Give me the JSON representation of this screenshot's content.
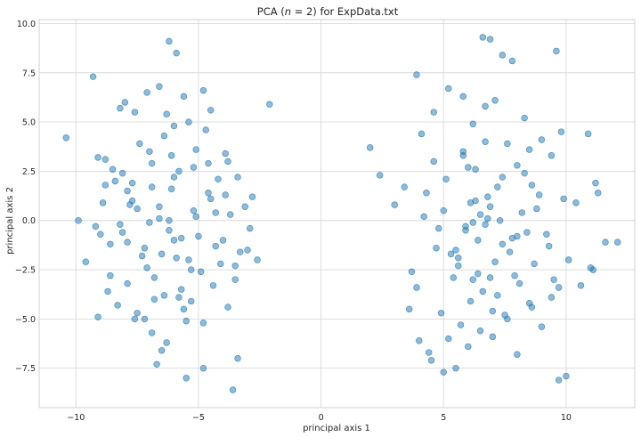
{
  "chart_data": {
    "type": "scatter",
    "title": "PCA (n = 2) for ExpData.txt",
    "title_prefix": "PCA (",
    "title_var": "n",
    "title_mid": " = 2) for ExpData.txt",
    "xlabel": "principal axis 1",
    "ylabel": "principal axis 2",
    "xlim": [
      -11.5,
      12.8
    ],
    "ylim": [
      -9.5,
      10.2
    ],
    "xticks": [
      -10,
      -5,
      0,
      5,
      10
    ],
    "yticks": [
      -7.5,
      -5.0,
      -2.5,
      0.0,
      2.5,
      5.0,
      7.5,
      10.0
    ],
    "xtick_labels": [
      "−10",
      "−5",
      "0",
      "5",
      "10"
    ],
    "ytick_labels": [
      "−7.5",
      "−5.0",
      "−2.5",
      "0.0",
      "2.5",
      "5.0",
      "7.5",
      "10.0"
    ],
    "grid": true,
    "marker_color": "#1f77b4",
    "marker_alpha": 0.5,
    "series": [
      {
        "x": [
          -10.4,
          -9.3,
          -9.6,
          -9.9,
          -9.2,
          -9.1,
          -8.8,
          -8.6,
          -8.2,
          -8.5,
          -8.0,
          -7.9,
          -7.6,
          -7.8,
          -7.2,
          -7.4,
          -7.1,
          -6.9,
          -6.6,
          -6.4,
          -6.2,
          -6.0,
          -5.9,
          -5.6,
          -5.4,
          -5.1,
          -4.8,
          -4.5,
          -4.2,
          -3.9,
          -3.6,
          -3.4,
          -2.1,
          -2.6,
          -3.0,
          -3.5,
          -4.3,
          -4.6,
          -5.0,
          -5.3,
          -5.8,
          -6.3,
          -6.7,
          -7.0,
          -7.5,
          -7.7,
          -8.1,
          -8.4,
          -8.7,
          -9.0,
          -8.9,
          -8.3,
          -7.3,
          -6.8,
          -6.1,
          -5.7,
          -5.2,
          -4.9,
          -4.4,
          -4.0,
          -3.7,
          -3.3,
          -3.1,
          -2.8,
          -2.9,
          -3.8,
          -4.7,
          -5.5,
          -6.5,
          -7.6,
          -8.1,
          -7.9,
          -6.9,
          -6.2,
          -5.4,
          -4.6,
          -3.9,
          -3.4,
          -3.5,
          -4.1,
          -4.8,
          -5.6,
          -6.4,
          -7.2,
          -7.9,
          -8.6,
          -9.1,
          -8.8,
          -7.7,
          -6.6,
          -5.9,
          -5.1,
          -4.3,
          -3.8,
          -4.5,
          -5.2,
          -6.0,
          -6.8,
          -7.5,
          -8.2,
          -7.1,
          -6.3,
          -5.5,
          -4.8,
          -6.2,
          -6.0,
          -5.8,
          -6.6,
          -7.0,
          -5.3,
          -6.1,
          -5.7,
          -6.9,
          -6.5
        ],
        "y": [
          4.2,
          7.3,
          -2.1,
          0.0,
          -0.3,
          3.2,
          1.8,
          -1.2,
          5.7,
          2.6,
          6.0,
          -3.2,
          5.5,
          0.8,
          -5.0,
          3.9,
          6.5,
          -5.7,
          6.8,
          4.3,
          9.1,
          2.2,
          8.5,
          6.3,
          5.0,
          0.2,
          6.6,
          5.6,
          2.1,
          1.3,
          -8.6,
          -7.0,
          5.9,
          -2.0,
          -1.5,
          -2.3,
          0.4,
          2.9,
          -0.8,
          -4.1,
          -3.9,
          -6.2,
          -7.3,
          3.5,
          -4.7,
          1.0,
          -0.6,
          2.0,
          -3.6,
          -0.7,
          0.9,
          -4.3,
          -1.8,
          -2.9,
          1.6,
          -0.9,
          0.5,
          -2.6,
          -3.3,
          -1.0,
          0.3,
          -1.6,
          0.7,
          1.2,
          -0.4,
          3.0,
          4.6,
          -5.1,
          -6.6,
          -5.0,
          2.4,
          -1.1,
          2.9,
          -0.5,
          -2.0,
          1.4,
          3.4,
          2.2,
          -3.0,
          -2.2,
          -5.2,
          -4.5,
          -3.8,
          -1.4,
          1.5,
          -2.8,
          -4.9,
          3.1,
          1.9,
          0.1,
          -1.9,
          3.6,
          -1.3,
          -4.4,
          1.1,
          2.7,
          4.8,
          -4.0,
          0.6,
          -0.2,
          -2.4,
          5.4,
          -8.0,
          -7.5,
          0.0,
          -1.0,
          2.5,
          0.7,
          -0.1,
          -2.5,
          3.3,
          -3.5,
          1.7,
          -1.7
        ]
      },
      {
        "x": [
          6.6,
          6.9,
          7.4,
          9.6,
          7.8,
          8.3,
          3.9,
          2.0,
          3.0,
          2.4,
          3.4,
          4.1,
          4.6,
          5.2,
          5.8,
          6.2,
          6.7,
          7.1,
          7.6,
          8.0,
          8.5,
          9.0,
          9.4,
          9.8,
          10.4,
          10.9,
          11.3,
          11.6,
          12.1,
          11.0,
          10.1,
          9.7,
          9.2,
          8.7,
          8.2,
          7.7,
          7.3,
          6.8,
          6.3,
          5.9,
          5.4,
          4.9,
          4.4,
          3.9,
          3.6,
          4.0,
          4.5,
          5.0,
          5.5,
          6.0,
          6.5,
          7.0,
          7.5,
          8.0,
          8.5,
          9.0,
          9.5,
          10.0,
          10.6,
          11.1,
          11.2,
          9.9,
          9.3,
          8.8,
          8.3,
          7.8,
          7.2,
          6.7,
          6.1,
          5.6,
          5.1,
          4.6,
          4.2,
          3.7,
          4.3,
          4.8,
          5.3,
          5.8,
          6.4,
          6.9,
          7.4,
          7.9,
          8.4,
          8.9,
          9.4,
          9.7,
          8.6,
          8.1,
          7.6,
          7.1,
          6.6,
          6.1,
          5.7,
          5.2,
          4.7,
          5.0,
          5.6,
          6.2,
          6.8,
          7.4,
          8.0,
          8.6,
          7.0,
          6.4,
          5.9,
          6.3,
          5.5,
          6.0,
          6.5,
          7.2,
          6.7,
          5.8,
          6.2,
          6.9
        ],
        "y": [
          9.3,
          9.2,
          8.4,
          8.6,
          8.1,
          5.2,
          7.4,
          3.7,
          0.8,
          2.3,
          1.7,
          4.4,
          5.5,
          6.7,
          6.3,
          4.9,
          5.8,
          6.1,
          3.9,
          2.8,
          3.6,
          4.1,
          3.3,
          4.5,
          0.9,
          4.4,
          1.4,
          -1.1,
          -1.1,
          -2.4,
          -2.0,
          -3.4,
          -0.7,
          -2.2,
          0.4,
          -1.6,
          0.0,
          1.2,
          2.6,
          -0.5,
          -2.9,
          -4.7,
          -6.7,
          -3.4,
          -4.5,
          -6.1,
          -7.1,
          -7.7,
          -7.5,
          -6.4,
          -5.6,
          -5.9,
          -4.8,
          -6.8,
          -4.2,
          -5.4,
          -3.0,
          -7.9,
          -3.3,
          -2.5,
          1.9,
          1.1,
          -1.3,
          0.6,
          2.4,
          -0.9,
          1.7,
          -0.2,
          0.9,
          -1.9,
          2.1,
          3.0,
          0.2,
          -2.6,
          1.4,
          -0.4,
          -1.7,
          3.3,
          -1.0,
          0.7,
          2.2,
          -2.8,
          -0.6,
          1.3,
          -3.9,
          -8.1,
          -4.4,
          -3.2,
          -5.0,
          -2.1,
          -3.6,
          -4.1,
          -5.3,
          -6.0,
          -1.4,
          0.5,
          -2.3,
          -3.0,
          0.1,
          -1.2,
          -0.8,
          1.8,
          -4.6,
          -2.7,
          -0.3,
          1.0,
          -1.5,
          2.7,
          0.3,
          -3.8,
          4.0,
          3.5,
          -0.1,
          -2.9
        ]
      }
    ]
  }
}
